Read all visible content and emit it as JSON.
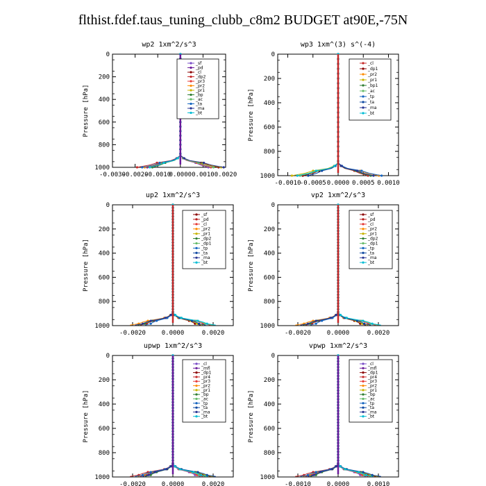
{
  "page_title": "flthist.fdef.taus_tuning_clubb_c8m2  BUDGET at90E,-75N",
  "chart_data": [
    {
      "type": "line",
      "title": "wp2   1xm^2/s^3",
      "ylabel": "Pressure [hPa]",
      "xlim": [
        -0.003,
        0.002
      ],
      "xticks": [
        -0.003,
        -0.002,
        -0.001,
        0.0,
        0.001,
        0.002
      ],
      "xtick_labels": [
        "-0.0030",
        "-0.0020",
        "-0.0010",
        "0.0000",
        "0.0010",
        "0.0020"
      ],
      "ylim": [
        1000,
        0
      ],
      "yticks": [
        0,
        200,
        400,
        600,
        800,
        1000
      ],
      "legend_position": "top-right",
      "series": [
        {
          "name": "_sf",
          "color": "#7a4dc7"
        },
        {
          "name": "_pd",
          "color": "#6a1b9a"
        },
        {
          "name": "_cl",
          "color": "#8b0000"
        },
        {
          "name": "_dp2",
          "color": "#c62828"
        },
        {
          "name": "_pr3",
          "color": "#e53935"
        },
        {
          "name": "_pr2",
          "color": "#ff8c00"
        },
        {
          "name": "_pr1",
          "color": "#c8b400"
        },
        {
          "name": "_bp",
          "color": "#2e7d32"
        },
        {
          "name": "_ac",
          "color": "#66bb6a"
        },
        {
          "name": "_ta",
          "color": "#1565c0"
        },
        {
          "name": "_ma",
          "color": "#283593"
        },
        {
          "name": "_bt",
          "color": "#00bcd4"
        }
      ]
    },
    {
      "type": "line",
      "title": "wp3   1xm^(3) s^(-4)",
      "ylabel": "Pressure [hPa]",
      "xlim": [
        -0.0012,
        0.0012
      ],
      "xticks": [
        -0.001,
        -0.0005,
        0.0,
        0.0005,
        0.001
      ],
      "xtick_labels": [
        "-0.0010",
        "-0.0005",
        "0.0000",
        "0.0005",
        "0.0010"
      ],
      "ylim": [
        1000,
        0
      ],
      "yticks": [
        0,
        200,
        400,
        600,
        800,
        1000
      ],
      "legend_position": "top-right",
      "series": [
        {
          "name": "_cl",
          "color": "#c62828"
        },
        {
          "name": "_dp1",
          "color": "#8b0000"
        },
        {
          "name": "_pr2",
          "color": "#ff8c00"
        },
        {
          "name": "_pr1",
          "color": "#c8b400"
        },
        {
          "name": "_bp1",
          "color": "#2e7d32"
        },
        {
          "name": "_ac",
          "color": "#66bb6a"
        },
        {
          "name": "_tp",
          "color": "#1565c0"
        },
        {
          "name": "_ta",
          "color": "#0d47a1"
        },
        {
          "name": "_ma",
          "color": "#283593"
        },
        {
          "name": "_bt",
          "color": "#00bcd4"
        }
      ]
    },
    {
      "type": "line",
      "title": "up2   1xm^2/s^3",
      "ylabel": "Pressure [hPa]",
      "xlim": [
        -0.003,
        0.003
      ],
      "xticks": [
        -0.002,
        0.0,
        0.002
      ],
      "xtick_labels": [
        "-0.0020",
        "0.0000",
        "0.0020"
      ],
      "ylim": [
        1000,
        0
      ],
      "yticks": [
        0,
        200,
        400,
        600,
        800,
        1000
      ],
      "legend_position": "top-right",
      "series": [
        {
          "name": "_sf",
          "color": "#8b0000"
        },
        {
          "name": "_pd",
          "color": "#b71c1c"
        },
        {
          "name": "_cl",
          "color": "#e53935"
        },
        {
          "name": "_pr2",
          "color": "#ff8c00"
        },
        {
          "name": "_pr1",
          "color": "#c8b400"
        },
        {
          "name": "_dp2",
          "color": "#2e7d32"
        },
        {
          "name": "_dp1",
          "color": "#66bb6a"
        },
        {
          "name": "_tp",
          "color": "#1565c0"
        },
        {
          "name": "_ta",
          "color": "#0d47a1"
        },
        {
          "name": "_ma",
          "color": "#283593"
        },
        {
          "name": "_bt",
          "color": "#00bcd4"
        }
      ]
    },
    {
      "type": "line",
      "title": "vp2   1xm^2/s^3",
      "ylabel": "Pressure [hPa]",
      "xlim": [
        -0.003,
        0.003
      ],
      "xticks": [
        -0.002,
        0.0,
        0.002
      ],
      "xtick_labels": [
        "-0.0020",
        "0.0000",
        "0.0020"
      ],
      "ylim": [
        1000,
        0
      ],
      "yticks": [
        0,
        200,
        400,
        600,
        800,
        1000
      ],
      "legend_position": "top-right",
      "series": [
        {
          "name": "_sf",
          "color": "#8b0000"
        },
        {
          "name": "_pd",
          "color": "#b71c1c"
        },
        {
          "name": "_cl",
          "color": "#e53935"
        },
        {
          "name": "_pr2",
          "color": "#ff8c00"
        },
        {
          "name": "_pr1",
          "color": "#c8b400"
        },
        {
          "name": "_dp2",
          "color": "#2e7d32"
        },
        {
          "name": "_dp1",
          "color": "#66bb6a"
        },
        {
          "name": "_tp",
          "color": "#1565c0"
        },
        {
          "name": "_ta",
          "color": "#0d47a1"
        },
        {
          "name": "_ma",
          "color": "#283593"
        },
        {
          "name": "_bt",
          "color": "#00bcd4"
        }
      ]
    },
    {
      "type": "line",
      "title": "upwp   1xm^2/s^3",
      "ylabel": "Pressure [hPa]",
      "xlim": [
        -0.003,
        0.003
      ],
      "xticks": [
        -0.002,
        0.0,
        0.002
      ],
      "xtick_labels": [
        "-0.0020",
        "0.0000",
        "0.0020"
      ],
      "ylim": [
        1000,
        0
      ],
      "yticks": [
        0,
        200,
        400,
        600,
        800,
        1000
      ],
      "legend_position": "top-right",
      "series": [
        {
          "name": "_cl",
          "color": "#7a4dc7"
        },
        {
          "name": "_mfl",
          "color": "#6a1b9a"
        },
        {
          "name": "_dp1",
          "color": "#8b0000"
        },
        {
          "name": "_pr4",
          "color": "#c62828"
        },
        {
          "name": "_pr3",
          "color": "#e53935"
        },
        {
          "name": "_pr2",
          "color": "#ff8c00"
        },
        {
          "name": "_pr1",
          "color": "#c8b400"
        },
        {
          "name": "_bp",
          "color": "#2e7d32"
        },
        {
          "name": "_ac",
          "color": "#66bb6a"
        },
        {
          "name": "_tp",
          "color": "#1565c0"
        },
        {
          "name": "_ta",
          "color": "#0d47a1"
        },
        {
          "name": "_ma",
          "color": "#283593"
        },
        {
          "name": "_bt",
          "color": "#00bcd4"
        }
      ]
    },
    {
      "type": "line",
      "title": "vpwp   1xm^2/s^3",
      "ylabel": "Pressure [hPa]",
      "xlim": [
        -0.0015,
        0.0015
      ],
      "xticks": [
        -0.001,
        0.0,
        0.001
      ],
      "xtick_labels": [
        "-0.0010",
        "0.0000",
        "0.0010"
      ],
      "ylim": [
        1000,
        0
      ],
      "yticks": [
        0,
        200,
        400,
        600,
        800,
        1000
      ],
      "legend_position": "top-right",
      "series": [
        {
          "name": "_cl",
          "color": "#7a4dc7"
        },
        {
          "name": "_mfl",
          "color": "#6a1b9a"
        },
        {
          "name": "_dp1",
          "color": "#8b0000"
        },
        {
          "name": "_pr4",
          "color": "#c62828"
        },
        {
          "name": "_pr3",
          "color": "#e53935"
        },
        {
          "name": "_pr2",
          "color": "#ff8c00"
        },
        {
          "name": "_pr1",
          "color": "#c8b400"
        },
        {
          "name": "_bp",
          "color": "#2e7d32"
        },
        {
          "name": "_ac",
          "color": "#66bb6a"
        },
        {
          "name": "_tp",
          "color": "#1565c0"
        },
        {
          "name": "_ta",
          "color": "#0d47a1"
        },
        {
          "name": "_ma",
          "color": "#283593"
        },
        {
          "name": "_bt",
          "color": "#00bcd4"
        }
      ]
    }
  ]
}
